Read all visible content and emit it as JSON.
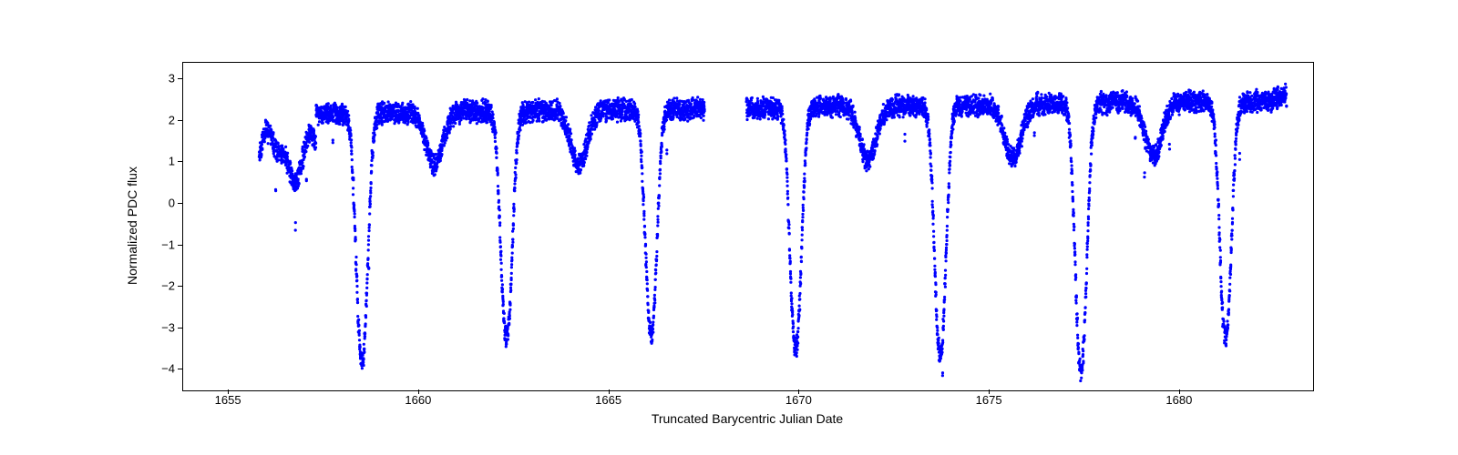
{
  "chart": {
    "type": "scatter",
    "xlabel": "Truncated Barycentric Julian Date",
    "ylabel": "Normalized PDC flux",
    "xlim": [
      1653.8,
      1683.5
    ],
    "ylim": [
      -4.5,
      3.4
    ],
    "xticks": [
      1655,
      1660,
      1665,
      1670,
      1675,
      1680
    ],
    "xtick_labels": [
      "1655",
      "1660",
      "1665",
      "1670",
      "1675",
      "1680"
    ],
    "yticks": [
      -4,
      -3,
      -2,
      -1,
      0,
      1,
      2,
      3
    ],
    "ytick_labels": [
      "−4",
      "−3",
      "−2",
      "−1",
      "0",
      "1",
      "2",
      "3"
    ],
    "marker_color": "#0000ff",
    "marker_size": 3.2,
    "background_color": "#ffffff",
    "border_color": "#000000",
    "label_fontsize": 14,
    "tick_fontsize": 13,
    "plot_aspect_w": 1240,
    "plot_aspect_h": 360,
    "eclipse_centers": [
      1658.5,
      1662.3,
      1666.1,
      1669.9,
      1673.7,
      1677.4,
      1681.2
    ],
    "eclipse_depth": -3.8,
    "secondary_centers": [
      1656.6,
      1660.4,
      1664.2,
      1668.0,
      1671.8,
      1675.6,
      1679.3
    ],
    "secondary_depth": 0.8,
    "baseline_high": 2.3,
    "gap_range": [
      1667.5,
      1668.6
    ],
    "noise_amplitude": 0.18,
    "points_per_unit_x": 480,
    "initial_segment": {
      "range": [
        1655.8,
        1658.0
      ],
      "irregular": true
    },
    "max_depths": {
      "1677.4": -4.1,
      "1658.5": -3.7,
      "1662.3": -3.2,
      "1666.1": -3.1,
      "1669.9": -3.5,
      "1673.7": -3.7,
      "1681.2": -3.4
    },
    "noise_seed": 424242
  }
}
